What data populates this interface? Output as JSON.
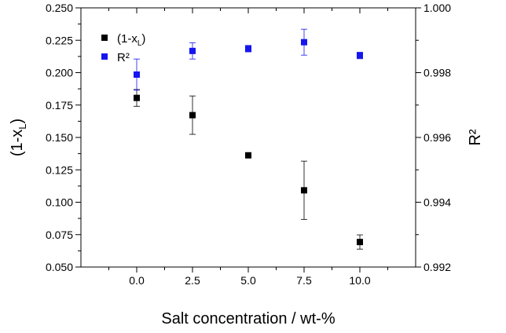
{
  "chart_data": {
    "type": "scatter",
    "xlabel": "Salt concentration  /  wt-%",
    "ylabel_left": "(1-x",
    "ylabel_left_sub": "L",
    "ylabel_left_close": ")",
    "ylabel_right": "R²",
    "xlim": [
      -2.5,
      12.5
    ],
    "ylim_left": [
      0.05,
      0.25
    ],
    "ylim_right": [
      0.992,
      1.0
    ],
    "x_ticks": [
      0.0,
      2.5,
      5.0,
      7.5,
      10.0
    ],
    "x_tick_labels": [
      "0.0",
      "2.5",
      "5.0",
      "7.5",
      "10.0"
    ],
    "y_left_ticks": [
      0.05,
      0.075,
      0.1,
      0.125,
      0.15,
      0.175,
      0.2,
      0.225,
      0.25
    ],
    "y_left_tick_labels": [
      "0.050",
      "0.075",
      "0.100",
      "0.125",
      "0.150",
      "0.175",
      "0.200",
      "0.225",
      "0.250"
    ],
    "y_right_ticks": [
      0.992,
      0.994,
      0.996,
      0.998,
      1.0
    ],
    "y_right_tick_labels": [
      "0.992",
      "0.994",
      "0.996",
      "0.998",
      "1.000"
    ],
    "legend_position": "top-left",
    "series": [
      {
        "name": "(1-x",
        "name_sub": "L",
        "name_close": ")",
        "axis": "left",
        "color": "#000000",
        "x": [
          0.0,
          2.5,
          5.0,
          7.5,
          10.0
        ],
        "y": [
          0.1805,
          0.1672,
          0.1362,
          0.1092,
          0.0693
        ],
        "err": [
          0.0065,
          0.0148,
          0.0,
          0.0225,
          0.0055
        ]
      },
      {
        "name": "R²",
        "axis": "right",
        "color": "#1515f0",
        "x": [
          0.0,
          2.5,
          5.0,
          7.5,
          10.0
        ],
        "y": [
          0.99794,
          0.99867,
          0.99874,
          0.99894,
          0.99853
        ],
        "err": [
          0.00048,
          0.00025,
          0.0001,
          0.0004,
          0.0001
        ]
      }
    ]
  }
}
